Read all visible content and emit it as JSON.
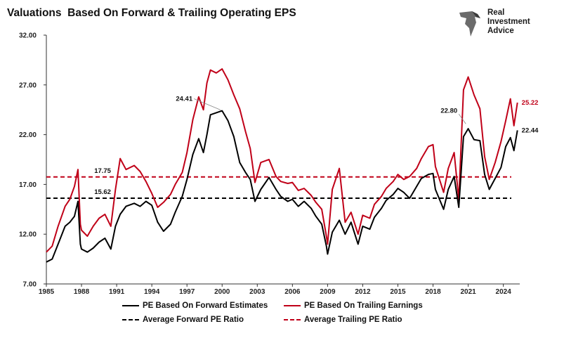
{
  "chart_data": {
    "type": "line",
    "title": "Valuations  Based On Forward & Trailing Operating EPS",
    "xlim": [
      1985,
      2025.4
    ],
    "ylim": [
      7,
      32
    ],
    "x_ticks": [
      "1985",
      "1988",
      "1991",
      "1994",
      "1997",
      "2000",
      "2003",
      "2006",
      "2009",
      "2012",
      "2015",
      "2018",
      "2021",
      "2024"
    ],
    "y_ticks": [
      "7.00",
      "12.00",
      "17.00",
      "22.00",
      "27.00",
      "32.00"
    ],
    "grid": false,
    "legend_position": "bottom",
    "series": [
      {
        "name": "PE Based On Forward Estimates",
        "color": "#000000",
        "points": [
          [
            1985,
            9.2
          ],
          [
            1985.5,
            9.5
          ],
          [
            1986,
            11
          ],
          [
            1986.6,
            12.8
          ],
          [
            1987,
            13.2
          ],
          [
            1987.4,
            13.8
          ],
          [
            1987.7,
            15.3
          ],
          [
            1987.9,
            11
          ],
          [
            1988,
            10.5
          ],
          [
            1988.5,
            10.2
          ],
          [
            1989,
            10.6
          ],
          [
            1989.5,
            11.2
          ],
          [
            1990,
            11.6
          ],
          [
            1990.5,
            10.5
          ],
          [
            1990.9,
            12.8
          ],
          [
            1991.3,
            14
          ],
          [
            1991.8,
            14.8
          ],
          [
            1992.5,
            15.1
          ],
          [
            1993,
            14.8
          ],
          [
            1993.5,
            15.3
          ],
          [
            1994,
            14.9
          ],
          [
            1994.5,
            13.2
          ],
          [
            1995,
            12.3
          ],
          [
            1995.6,
            13
          ],
          [
            1996,
            14.2
          ],
          [
            1996.6,
            15.8
          ],
          [
            1997,
            17.5
          ],
          [
            1997.5,
            20
          ],
          [
            1998,
            21.6
          ],
          [
            1998.4,
            20.2
          ],
          [
            1998.7,
            22
          ],
          [
            1999,
            24
          ],
          [
            1999.5,
            24.2
          ],
          [
            2000,
            24.4
          ],
          [
            2000.5,
            23.4
          ],
          [
            2001,
            21.8
          ],
          [
            2001.5,
            19.2
          ],
          [
            2002,
            18.2
          ],
          [
            2002.4,
            17.5
          ],
          [
            2002.8,
            15.3
          ],
          [
            2003.3,
            16.5
          ],
          [
            2004,
            17.7
          ],
          [
            2004.6,
            16.5
          ],
          [
            2005,
            15.8
          ],
          [
            2005.6,
            15.3
          ],
          [
            2006,
            15.5
          ],
          [
            2006.5,
            14.8
          ],
          [
            2007,
            15.3
          ],
          [
            2007.6,
            14.6
          ],
          [
            2008,
            13.8
          ],
          [
            2008.5,
            13
          ],
          [
            2008.9,
            10.8
          ],
          [
            2009,
            10
          ],
          [
            2009.4,
            12.2
          ],
          [
            2010,
            13.4
          ],
          [
            2010.5,
            12
          ],
          [
            2011,
            13.2
          ],
          [
            2011.6,
            11
          ],
          [
            2012,
            12.8
          ],
          [
            2012.6,
            12.5
          ],
          [
            2013,
            13.7
          ],
          [
            2013.6,
            14.6
          ],
          [
            2014,
            15.4
          ],
          [
            2014.6,
            16
          ],
          [
            2015,
            16.6
          ],
          [
            2015.5,
            16.2
          ],
          [
            2016,
            15.6
          ],
          [
            2016.6,
            16.8
          ],
          [
            2017,
            17.6
          ],
          [
            2017.6,
            18
          ],
          [
            2018,
            18.1
          ],
          [
            2018.2,
            16.5
          ],
          [
            2018.9,
            14.5
          ],
          [
            2019.3,
            16.5
          ],
          [
            2019.8,
            17.8
          ],
          [
            2020.2,
            14.7
          ],
          [
            2020.6,
            21.8
          ],
          [
            2021,
            22.6
          ],
          [
            2021.5,
            21.5
          ],
          [
            2022,
            21.4
          ],
          [
            2022.4,
            18
          ],
          [
            2022.8,
            16.5
          ],
          [
            2023.3,
            17.6
          ],
          [
            2023.8,
            18.7
          ],
          [
            2024.2,
            20.8
          ],
          [
            2024.6,
            21.7
          ],
          [
            2024.9,
            20.4
          ],
          [
            2025.2,
            22.44
          ]
        ]
      },
      {
        "name": "PE Based On Trailing Earnings",
        "color": "#c00018",
        "points": [
          [
            1985,
            10.2
          ],
          [
            1985.5,
            10.8
          ],
          [
            1986,
            12.8
          ],
          [
            1986.6,
            14.8
          ],
          [
            1987,
            15.5
          ],
          [
            1987.4,
            16.8
          ],
          [
            1987.7,
            18.5
          ],
          [
            1987.9,
            13
          ],
          [
            1988,
            12.4
          ],
          [
            1988.5,
            11.8
          ],
          [
            1989,
            12.8
          ],
          [
            1989.5,
            13.6
          ],
          [
            1990,
            14
          ],
          [
            1990.5,
            12.8
          ],
          [
            1990.9,
            16.5
          ],
          [
            1991.3,
            19.6
          ],
          [
            1991.8,
            18.5
          ],
          [
            1992.5,
            18.9
          ],
          [
            1993,
            18.3
          ],
          [
            1993.5,
            17.3
          ],
          [
            1994,
            16.1
          ],
          [
            1994.5,
            14.7
          ],
          [
            1995,
            15.2
          ],
          [
            1995.6,
            16
          ],
          [
            1996,
            17
          ],
          [
            1996.6,
            18.2
          ],
          [
            1997,
            20.2
          ],
          [
            1997.5,
            23.5
          ],
          [
            1998,
            25.8
          ],
          [
            1998.4,
            24.5
          ],
          [
            1998.7,
            27.2
          ],
          [
            1999,
            28.5
          ],
          [
            1999.5,
            28.2
          ],
          [
            2000,
            28.6
          ],
          [
            2000.5,
            27.5
          ],
          [
            2001,
            26
          ],
          [
            2001.5,
            24.6
          ],
          [
            2002,
            22.3
          ],
          [
            2002.4,
            20.6
          ],
          [
            2002.8,
            17.2
          ],
          [
            2003.3,
            19.2
          ],
          [
            2004,
            19.5
          ],
          [
            2004.6,
            17.8
          ],
          [
            2005,
            17.3
          ],
          [
            2005.6,
            17.1
          ],
          [
            2006,
            17.2
          ],
          [
            2006.5,
            16.4
          ],
          [
            2007,
            16.6
          ],
          [
            2007.6,
            15.9
          ],
          [
            2008,
            15.2
          ],
          [
            2008.5,
            14.5
          ],
          [
            2008.9,
            11.8
          ],
          [
            2009,
            11
          ],
          [
            2009.4,
            16.5
          ],
          [
            2010,
            18.6
          ],
          [
            2010.5,
            13.2
          ],
          [
            2011,
            14.2
          ],
          [
            2011.6,
            12
          ],
          [
            2012,
            13.9
          ],
          [
            2012.6,
            13.6
          ],
          [
            2013,
            15
          ],
          [
            2013.6,
            15.8
          ],
          [
            2014,
            16.6
          ],
          [
            2014.6,
            17.3
          ],
          [
            2015,
            18
          ],
          [
            2015.5,
            17.5
          ],
          [
            2016,
            17.8
          ],
          [
            2016.6,
            18.6
          ],
          [
            2017,
            19.6
          ],
          [
            2017.6,
            20.8
          ],
          [
            2018,
            21
          ],
          [
            2018.2,
            18.8
          ],
          [
            2018.9,
            16.2
          ],
          [
            2019.3,
            18.6
          ],
          [
            2019.8,
            20.2
          ],
          [
            2020.2,
            15.5
          ],
          [
            2020.6,
            26.5
          ],
          [
            2021,
            27.8
          ],
          [
            2021.5,
            26
          ],
          [
            2022,
            24.6
          ],
          [
            2022.4,
            19.8
          ],
          [
            2022.8,
            17.5
          ],
          [
            2023.3,
            19.2
          ],
          [
            2023.8,
            21.3
          ],
          [
            2024.2,
            23.4
          ],
          [
            2024.6,
            25.6
          ],
          [
            2024.9,
            22.9
          ],
          [
            2025.2,
            25.22
          ]
        ]
      },
      {
        "name": "Average Forward PE Ratio",
        "color": "#000000",
        "dashed": true,
        "value": 15.62
      },
      {
        "name": "Average Trailing PE Ratio",
        "color": "#c00018",
        "dashed": true,
        "value": 17.75
      }
    ],
    "annotations": [
      {
        "text": "17.75",
        "x": 1989.8,
        "y": 17.75,
        "color": "#111111"
      },
      {
        "text": "15.62",
        "x": 1989.8,
        "y": 15.62,
        "color": "#111111"
      },
      {
        "text": "24.41",
        "x": 2000.0,
        "y": 24.41,
        "color": "#111111"
      },
      {
        "text": "22.80",
        "x": 2020.8,
        "y": 22.8,
        "color": "#111111"
      },
      {
        "text": "25.22",
        "x": 2025.2,
        "y": 25.22,
        "color": "#c00018"
      },
      {
        "text": "22.44",
        "x": 2025.2,
        "y": 22.44,
        "color": "#111111"
      }
    ]
  },
  "logo": {
    "line1": "Real",
    "line2": "Investment",
    "line3": "Advice"
  }
}
